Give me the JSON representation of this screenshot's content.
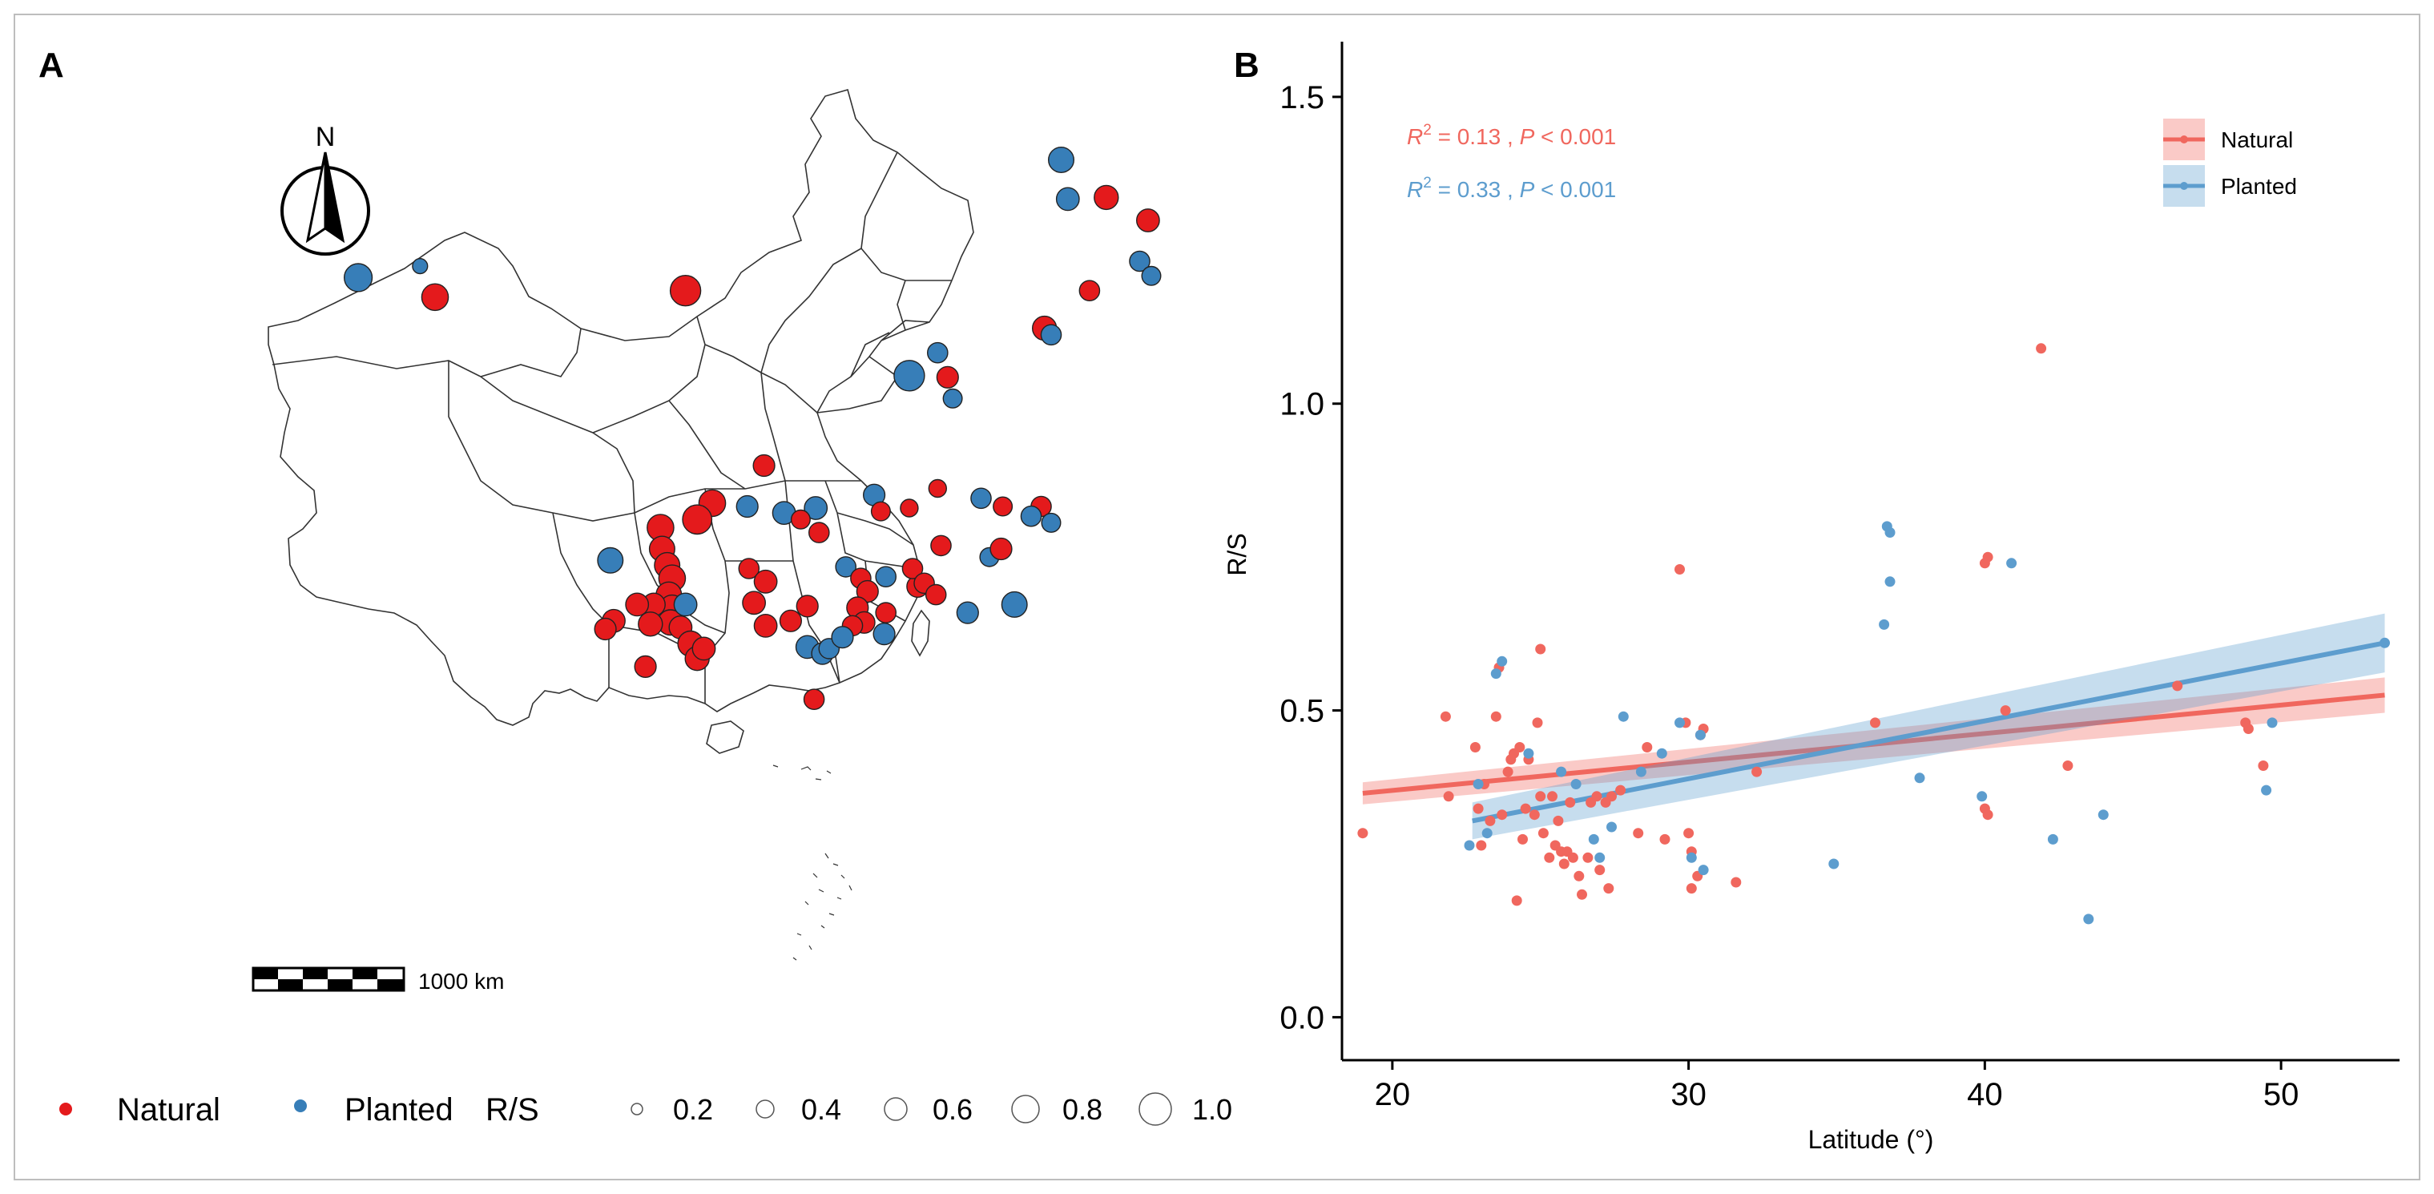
{
  "panel_labels": {
    "a": "A",
    "b": "B"
  },
  "map": {
    "north_label": "N",
    "scale_label": "1000 km",
    "legend": {
      "natural_label": "Natural",
      "planted_label": "Planted",
      "size_title": "R/S",
      "size_values": [
        "0.2",
        "0.4",
        "0.6",
        "0.8",
        "1.0"
      ]
    },
    "colors": {
      "natural": "#e41a1c",
      "planted": "#377eb8",
      "outline": "#222222"
    },
    "sites": [
      {
        "lon": 124.8,
        "lat": 51.8,
        "rs": 0.55,
        "group": "planted"
      },
      {
        "lon": 125.2,
        "lat": 49.4,
        "rs": 0.45,
        "group": "planted"
      },
      {
        "lon": 127.5,
        "lat": 49.5,
        "rs": 0.5,
        "group": "natural"
      },
      {
        "lon": 130.0,
        "lat": 48.1,
        "rs": 0.45,
        "group": "natural"
      },
      {
        "lon": 129.5,
        "lat": 45.6,
        "rs": 0.35,
        "group": "planted"
      },
      {
        "lon": 130.2,
        "lat": 44.7,
        "rs": 0.3,
        "group": "planted"
      },
      {
        "lon": 126.5,
        "lat": 43.8,
        "rs": 0.35,
        "group": "natural"
      },
      {
        "lon": 123.8,
        "lat": 41.5,
        "rs": 0.5,
        "group": "natural"
      },
      {
        "lon": 124.2,
        "lat": 41.1,
        "rs": 0.35,
        "group": "planted"
      },
      {
        "lon": 82.7,
        "lat": 44.6,
        "rs": 0.65,
        "group": "planted"
      },
      {
        "lon": 86.4,
        "lat": 45.3,
        "rs": 0.15,
        "group": "planted"
      },
      {
        "lon": 87.3,
        "lat": 43.4,
        "rs": 0.6,
        "group": "natural"
      },
      {
        "lon": 102.3,
        "lat": 43.8,
        "rs": 0.75,
        "group": "natural"
      },
      {
        "lon": 117.4,
        "lat": 40.0,
        "rs": 0.35,
        "group": "planted"
      },
      {
        "lon": 115.7,
        "lat": 38.6,
        "rs": 0.75,
        "group": "planted"
      },
      {
        "lon": 118.0,
        "lat": 38.5,
        "rs": 0.4,
        "group": "natural"
      },
      {
        "lon": 118.3,
        "lat": 37.2,
        "rs": 0.3,
        "group": "planted"
      },
      {
        "lon": 107.0,
        "lat": 33.1,
        "rs": 0.4,
        "group": "natural"
      },
      {
        "lon": 103.9,
        "lat": 30.8,
        "rs": 0.6,
        "group": "natural"
      },
      {
        "lon": 103.0,
        "lat": 29.8,
        "rs": 0.7,
        "group": "natural"
      },
      {
        "lon": 110.1,
        "lat": 30.5,
        "rs": 0.45,
        "group": "planted"
      },
      {
        "lon": 113.6,
        "lat": 31.3,
        "rs": 0.4,
        "group": "planted"
      },
      {
        "lon": 114.0,
        "lat": 30.3,
        "rs": 0.3,
        "group": "natural"
      },
      {
        "lon": 115.7,
        "lat": 30.5,
        "rs": 0.25,
        "group": "natural"
      },
      {
        "lon": 117.4,
        "lat": 31.7,
        "rs": 0.25,
        "group": "natural"
      },
      {
        "lon": 120.0,
        "lat": 31.1,
        "rs": 0.35,
        "group": "planted"
      },
      {
        "lon": 121.3,
        "lat": 30.6,
        "rs": 0.3,
        "group": "natural"
      },
      {
        "lon": 123.6,
        "lat": 30.6,
        "rs": 0.35,
        "group": "natural"
      },
      {
        "lon": 124.2,
        "lat": 29.6,
        "rs": 0.3,
        "group": "planted"
      },
      {
        "lon": 123.0,
        "lat": 30.0,
        "rs": 0.35,
        "group": "planted"
      },
      {
        "lon": 120.5,
        "lat": 27.5,
        "rs": 0.3,
        "group": "planted"
      },
      {
        "lon": 122.0,
        "lat": 24.6,
        "rs": 0.55,
        "group": "planted"
      },
      {
        "lon": 119.2,
        "lat": 24.1,
        "rs": 0.4,
        "group": "planted"
      },
      {
        "lon": 114.3,
        "lat": 26.3,
        "rs": 0.35,
        "group": "planted"
      },
      {
        "lon": 116.2,
        "lat": 25.7,
        "rs": 0.4,
        "group": "natural"
      },
      {
        "lon": 115.9,
        "lat": 26.8,
        "rs": 0.35,
        "group": "natural"
      },
      {
        "lon": 116.6,
        "lat": 25.9,
        "rs": 0.35,
        "group": "natural"
      },
      {
        "lon": 117.3,
        "lat": 25.2,
        "rs": 0.35,
        "group": "natural"
      },
      {
        "lon": 121.2,
        "lat": 28.0,
        "rs": 0.4,
        "group": "natural"
      },
      {
        "lon": 117.6,
        "lat": 28.2,
        "rs": 0.35,
        "group": "natural"
      },
      {
        "lon": 97.8,
        "lat": 27.3,
        "rs": 0.55,
        "group": "planted"
      },
      {
        "lon": 100.8,
        "lat": 29.3,
        "rs": 0.6,
        "group": "natural"
      },
      {
        "lon": 100.9,
        "lat": 28.0,
        "rs": 0.55,
        "group": "natural"
      },
      {
        "lon": 101.2,
        "lat": 27.0,
        "rs": 0.55,
        "group": "natural"
      },
      {
        "lon": 101.5,
        "lat": 26.2,
        "rs": 0.6,
        "group": "natural"
      },
      {
        "lon": 101.3,
        "lat": 25.2,
        "rs": 0.55,
        "group": "natural"
      },
      {
        "lon": 101.5,
        "lat": 24.4,
        "rs": 0.55,
        "group": "natural"
      },
      {
        "lon": 101.4,
        "lat": 23.5,
        "rs": 0.55,
        "group": "natural"
      },
      {
        "lon": 100.4,
        "lat": 24.6,
        "rs": 0.45,
        "group": "natural"
      },
      {
        "lon": 99.4,
        "lat": 24.6,
        "rs": 0.45,
        "group": "natural"
      },
      {
        "lon": 98.0,
        "lat": 23.6,
        "rs": 0.45,
        "group": "natural"
      },
      {
        "lon": 97.5,
        "lat": 23.1,
        "rs": 0.4,
        "group": "natural"
      },
      {
        "lon": 100.2,
        "lat": 23.4,
        "rs": 0.5,
        "group": "natural"
      },
      {
        "lon": 102.0,
        "lat": 23.2,
        "rs": 0.45,
        "group": "natural"
      },
      {
        "lon": 102.6,
        "lat": 22.2,
        "rs": 0.55,
        "group": "natural"
      },
      {
        "lon": 103.0,
        "lat": 21.3,
        "rs": 0.5,
        "group": "natural"
      },
      {
        "lon": 103.4,
        "lat": 21.9,
        "rs": 0.45,
        "group": "natural"
      },
      {
        "lon": 99.9,
        "lat": 20.8,
        "rs": 0.4,
        "group": "natural"
      },
      {
        "lon": 102.3,
        "lat": 24.6,
        "rs": 0.45,
        "group": "planted"
      },
      {
        "lon": 106.1,
        "lat": 26.8,
        "rs": 0.35,
        "group": "natural"
      },
      {
        "lon": 107.1,
        "lat": 26.0,
        "rs": 0.45,
        "group": "natural"
      },
      {
        "lon": 106.4,
        "lat": 24.7,
        "rs": 0.45,
        "group": "natural"
      },
      {
        "lon": 107.1,
        "lat": 23.3,
        "rs": 0.45,
        "group": "natural"
      },
      {
        "lon": 108.6,
        "lat": 23.6,
        "rs": 0.4,
        "group": "natural"
      },
      {
        "lon": 109.6,
        "lat": 24.5,
        "rs": 0.4,
        "group": "natural"
      },
      {
        "lon": 109.6,
        "lat": 22.0,
        "rs": 0.45,
        "group": "planted"
      },
      {
        "lon": 110.5,
        "lat": 21.6,
        "rs": 0.4,
        "group": "planted"
      },
      {
        "lon": 110.9,
        "lat": 21.9,
        "rs": 0.35,
        "group": "planted"
      },
      {
        "lon": 111.9,
        "lat": 26.9,
        "rs": 0.35,
        "group": "planted"
      },
      {
        "lon": 112.8,
        "lat": 26.2,
        "rs": 0.35,
        "group": "natural"
      },
      {
        "lon": 113.2,
        "lat": 25.4,
        "rs": 0.4,
        "group": "natural"
      },
      {
        "lon": 112.6,
        "lat": 24.4,
        "rs": 0.4,
        "group": "natural"
      },
      {
        "lon": 113.0,
        "lat": 23.5,
        "rs": 0.4,
        "group": "natural"
      },
      {
        "lon": 112.3,
        "lat": 23.3,
        "rs": 0.35,
        "group": "natural"
      },
      {
        "lon": 114.3,
        "lat": 24.1,
        "rs": 0.35,
        "group": "natural"
      },
      {
        "lon": 114.2,
        "lat": 22.8,
        "rs": 0.4,
        "group": "planted"
      },
      {
        "lon": 111.7,
        "lat": 22.6,
        "rs": 0.4,
        "group": "planted"
      },
      {
        "lon": 110.0,
        "lat": 18.8,
        "rs": 0.35,
        "group": "natural"
      },
      {
        "lon": 106.0,
        "lat": 30.6,
        "rs": 0.4,
        "group": "planted"
      },
      {
        "lon": 108.2,
        "lat": 30.2,
        "rs": 0.45,
        "group": "planted"
      },
      {
        "lon": 109.2,
        "lat": 29.8,
        "rs": 0.3,
        "group": "natural"
      },
      {
        "lon": 110.3,
        "lat": 29.0,
        "rs": 0.35,
        "group": "natural"
      }
    ]
  },
  "chart_data": {
    "type": "scatter",
    "title": "",
    "xlabel": "Latitude (°)",
    "ylabel": "R/S",
    "xlim": [
      18.3,
      54
    ],
    "ylim": [
      -0.07,
      1.59
    ],
    "xticks": [
      20,
      30,
      40,
      50
    ],
    "yticks": [
      0.0,
      0.5,
      1.0,
      1.5
    ],
    "xtick_labels": [
      "20",
      "30",
      "40",
      "50"
    ],
    "ytick_labels": [
      "0.0",
      "0.5",
      "1.0",
      "1.5"
    ],
    "legend": {
      "position": "top-right",
      "entries": [
        "Natural",
        "Planted"
      ]
    },
    "annotations": [
      {
        "series": "Natural",
        "r2_label": "R",
        "r2_exp": "2",
        "r2_text": " = 0.13 , ",
        "p_label": "P",
        "p_text": " < 0.001"
      },
      {
        "series": "Planted",
        "r2_label": "R",
        "r2_exp": "2",
        "r2_text": " = 0.33 , ",
        "p_label": "P",
        "p_text": " < 0.001"
      }
    ],
    "series": [
      {
        "name": "Natural",
        "color": "#f0675e",
        "fit": {
          "x0": 19,
          "y0": 0.365,
          "x1": 53.5,
          "y1": 0.525,
          "band": 0.018
        },
        "points": [
          [
            19.0,
            0.3
          ],
          [
            21.8,
            0.49
          ],
          [
            21.9,
            0.36
          ],
          [
            22.8,
            0.44
          ],
          [
            22.9,
            0.34
          ],
          [
            23.0,
            0.28
          ],
          [
            23.1,
            0.38
          ],
          [
            23.3,
            0.32
          ],
          [
            23.5,
            0.49
          ],
          [
            23.6,
            0.57
          ],
          [
            23.7,
            0.33
          ],
          [
            23.9,
            0.4
          ],
          [
            24.0,
            0.42
          ],
          [
            24.1,
            0.43
          ],
          [
            24.2,
            0.19
          ],
          [
            24.3,
            0.44
          ],
          [
            24.4,
            0.29
          ],
          [
            24.5,
            0.34
          ],
          [
            24.6,
            0.42
          ],
          [
            24.8,
            0.33
          ],
          [
            24.9,
            0.48
          ],
          [
            25.0,
            0.6
          ],
          [
            25.0,
            0.36
          ],
          [
            25.1,
            0.3
          ],
          [
            25.3,
            0.26
          ],
          [
            25.4,
            0.36
          ],
          [
            25.5,
            0.28
          ],
          [
            25.6,
            0.32
          ],
          [
            25.7,
            0.27
          ],
          [
            25.8,
            0.25
          ],
          [
            25.9,
            0.27
          ],
          [
            26.0,
            0.35
          ],
          [
            26.1,
            0.26
          ],
          [
            26.3,
            0.23
          ],
          [
            26.4,
            0.2
          ],
          [
            26.6,
            0.26
          ],
          [
            26.7,
            0.35
          ],
          [
            26.9,
            0.36
          ],
          [
            27.0,
            0.24
          ],
          [
            27.2,
            0.35
          ],
          [
            27.3,
            0.21
          ],
          [
            27.4,
            0.36
          ],
          [
            27.7,
            0.37
          ],
          [
            28.3,
            0.3
          ],
          [
            28.6,
            0.44
          ],
          [
            29.2,
            0.29
          ],
          [
            29.7,
            0.73
          ],
          [
            29.9,
            0.48
          ],
          [
            30.0,
            0.3
          ],
          [
            30.1,
            0.27
          ],
          [
            30.1,
            0.21
          ],
          [
            30.3,
            0.23
          ],
          [
            30.4,
            0.46
          ],
          [
            30.5,
            0.47
          ],
          [
            31.6,
            0.22
          ],
          [
            32.3,
            0.4
          ],
          [
            36.3,
            0.48
          ],
          [
            40.0,
            0.74
          ],
          [
            40.1,
            0.75
          ],
          [
            40.0,
            0.34
          ],
          [
            40.1,
            0.33
          ],
          [
            40.7,
            0.5
          ],
          [
            41.9,
            1.09
          ],
          [
            42.8,
            0.41
          ],
          [
            46.5,
            0.54
          ],
          [
            48.9,
            0.47
          ],
          [
            48.8,
            0.48
          ],
          [
            49.4,
            0.41
          ]
        ]
      },
      {
        "name": "Planted",
        "color": "#5d9dce",
        "fit": {
          "x0": 22.7,
          "y0": 0.32,
          "x1": 53.5,
          "y1": 0.61,
          "band": 0.03
        },
        "points": [
          [
            22.6,
            0.28
          ],
          [
            22.9,
            0.38
          ],
          [
            23.2,
            0.3
          ],
          [
            23.5,
            0.56
          ],
          [
            23.7,
            0.58
          ],
          [
            24.6,
            0.43
          ],
          [
            25.7,
            0.4
          ],
          [
            26.2,
            0.38
          ],
          [
            26.8,
            0.29
          ],
          [
            27.0,
            0.26
          ],
          [
            27.4,
            0.31
          ],
          [
            27.8,
            0.49
          ],
          [
            28.4,
            0.4
          ],
          [
            29.1,
            0.43
          ],
          [
            29.7,
            0.48
          ],
          [
            30.1,
            0.26
          ],
          [
            30.4,
            0.46
          ],
          [
            30.5,
            0.24
          ],
          [
            34.9,
            0.25
          ],
          [
            36.6,
            0.64
          ],
          [
            36.7,
            0.8
          ],
          [
            36.8,
            0.79
          ],
          [
            36.8,
            0.71
          ],
          [
            37.8,
            0.39
          ],
          [
            39.9,
            0.36
          ],
          [
            40.9,
            0.74
          ],
          [
            42.3,
            0.29
          ],
          [
            43.5,
            0.16
          ],
          [
            44.0,
            0.33
          ],
          [
            49.5,
            0.37
          ],
          [
            49.7,
            0.48
          ],
          [
            53.5,
            0.61
          ]
        ]
      }
    ]
  }
}
